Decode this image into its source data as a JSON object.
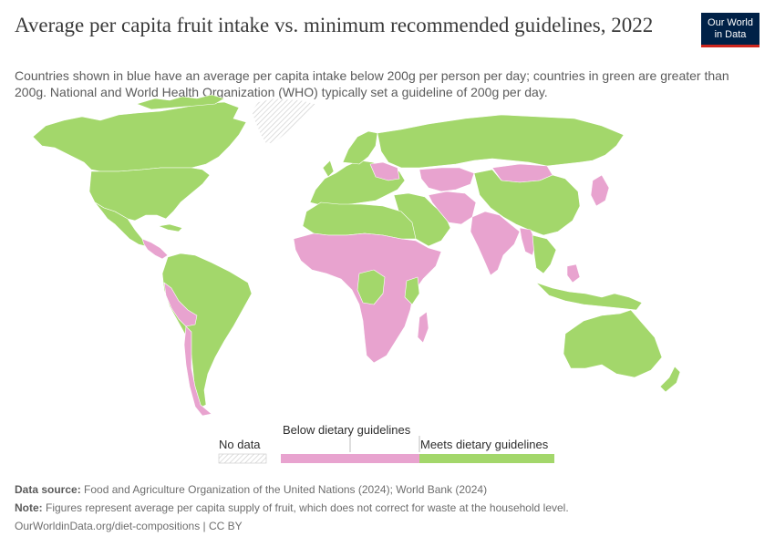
{
  "header": {
    "title": "Average per capita fruit intake vs. minimum recommended guidelines, 2022",
    "subtitle": "Countries shown in blue have an average per capita intake below 200g per person per day; countries in green are greater than 200g. National and World Health Organization (WHO) typically set a guideline of 200g per day.",
    "logo_line1": "Our World",
    "logo_line2": "in Data"
  },
  "colors": {
    "below": "#e8a3cf",
    "meets": "#a3d76b",
    "no_data_hatch": "#cfcfcf",
    "logo_bg": "#002147",
    "logo_accent": "#ce261e"
  },
  "map": {
    "projection": "world",
    "regions_below": [
      "Mexico (south)",
      "Central America",
      "Peru",
      "Chile",
      "Bolivia",
      "Sub-Saharan Africa",
      "Horn of Africa",
      "Southern Africa",
      "India",
      "Pakistan",
      "Afghanistan",
      "Bangladesh",
      "Myanmar",
      "Mongolia",
      "Kazakhstan",
      "Iran",
      "Ukraine",
      "Japan",
      "Philippines"
    ],
    "regions_meets": [
      "North America",
      "Brazil",
      "Argentina",
      "Europe",
      "Russia",
      "China",
      "North Africa",
      "Middle East",
      "Southeast Asia",
      "Indonesia",
      "Australia",
      "New Zealand"
    ],
    "regions_no_data": [
      "Greenland"
    ]
  },
  "legend": {
    "no_data_label": "No data",
    "below_label": "Below dietary guidelines",
    "meets_label": "Meets dietary guidelines"
  },
  "footer": {
    "source_label": "Data source:",
    "source_text": "Food and Agriculture Organization of the United Nations (2024); World Bank (2024)",
    "note_label": "Note:",
    "note_text": "Figures represent average per capita supply of fruit, which does not correct for waste at the household level.",
    "url": "OurWorldinData.org/diet-compositions | CC BY"
  }
}
